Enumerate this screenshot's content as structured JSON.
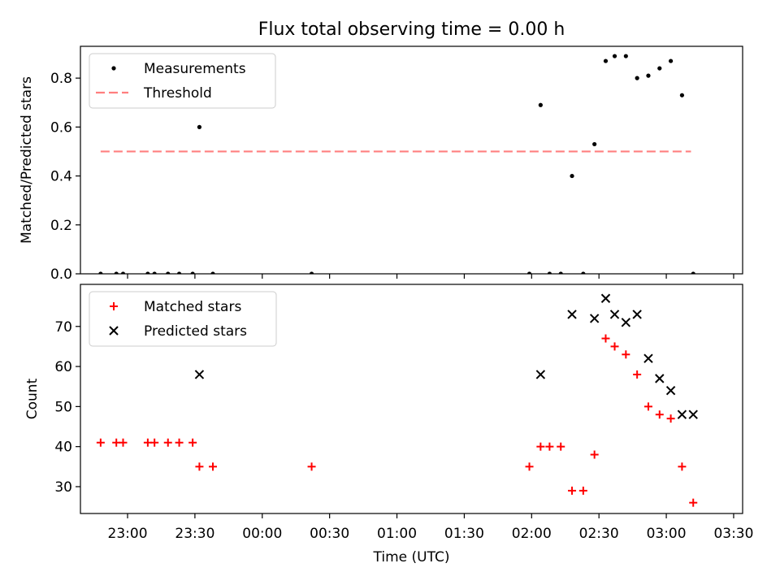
{
  "colors": {
    "background": "#ffffff",
    "axis": "#000000",
    "threshold": "#ff7f7f",
    "matched": "#ff0000",
    "predicted": "#000000",
    "measurement": "#000000"
  },
  "chart_data": [
    {
      "type": "scatter",
      "title": "Flux total observing time = 0.00 h",
      "xlabel": "",
      "ylabel": "Matched/Predicted stars",
      "x_unit": "minutes after 00:00 UTC",
      "xlim": [
        -81,
        214
      ],
      "ylim": [
        0,
        0.93
      ],
      "yticks": [
        0.0,
        0.2,
        0.4,
        0.6,
        0.8
      ],
      "ytick_labels": [
        "0.0",
        "0.2",
        "0.4",
        "0.6",
        "0.8"
      ],
      "legend": {
        "placement": "top-left",
        "entries": [
          {
            "label": "Measurements",
            "key": "measurements"
          },
          {
            "label": "Threshold",
            "key": "threshold"
          }
        ]
      },
      "series": [
        {
          "name": "Measurements",
          "key": "measurements",
          "marker": "dot",
          "x": [
            -72,
            -65,
            -62,
            -51,
            -48,
            -42,
            -37,
            -31,
            -28,
            -22,
            22,
            119,
            124,
            128,
            133,
            138,
            143,
            148,
            153,
            157,
            162,
            167,
            172,
            177,
            182,
            187,
            192
          ],
          "y": [
            0,
            0,
            0,
            0,
            0,
            0,
            0,
            0,
            0.6,
            0,
            0,
            0,
            0.69,
            0,
            0,
            0.4,
            0,
            0.53,
            0.87,
            0.89,
            0.89,
            0.8,
            0.81,
            0.84,
            0.87,
            0.73,
            0
          ]
        },
        {
          "name": "Threshold",
          "key": "threshold",
          "line_style": "dashed",
          "x": [
            -72,
            191
          ],
          "y": [
            0.5,
            0.5
          ]
        }
      ]
    },
    {
      "type": "scatter",
      "title": "",
      "xlabel": "Time (UTC)",
      "ylabel": "Count",
      "x_unit": "minutes after 00:00 UTC",
      "xlim": [
        -81,
        214
      ],
      "ylim": [
        23.3,
        80.5
      ],
      "yticks": [
        30,
        40,
        50,
        60,
        70
      ],
      "ytick_labels": [
        "30",
        "40",
        "50",
        "60",
        "70"
      ],
      "xticks": [
        -60,
        -30,
        0,
        30,
        60,
        90,
        120,
        150,
        180,
        210
      ],
      "xtick_labels": [
        "23:00",
        "23:30",
        "00:00",
        "00:30",
        "01:00",
        "01:30",
        "02:00",
        "02:30",
        "03:00",
        "03:30"
      ],
      "legend": {
        "placement": "top-left",
        "entries": [
          {
            "label": "Matched stars",
            "key": "matched"
          },
          {
            "label": "Predicted stars",
            "key": "predicted"
          }
        ]
      },
      "series": [
        {
          "name": "Matched stars",
          "key": "matched",
          "marker": "plus",
          "x": [
            -72,
            -65,
            -62,
            -51,
            -48,
            -42,
            -37,
            -31,
            -28,
            -22,
            22,
            119,
            124,
            128,
            133,
            138,
            143,
            148,
            153,
            157,
            162,
            167,
            172,
            177,
            182,
            187,
            192
          ],
          "y": [
            41,
            41,
            41,
            41,
            41,
            41,
            41,
            41,
            35,
            35,
            35,
            35,
            40,
            40,
            40,
            29,
            29,
            38,
            67,
            65,
            63,
            58,
            50,
            48,
            47,
            35,
            26
          ]
        },
        {
          "name": "Predicted stars",
          "key": "predicted",
          "marker": "x",
          "x": [
            -28,
            124,
            138,
            148,
            153,
            157,
            162,
            167,
            172,
            177,
            182,
            187,
            192
          ],
          "y": [
            58,
            58,
            73,
            72,
            77,
            73,
            71,
            73,
            62,
            57,
            54,
            48,
            48
          ]
        }
      ]
    }
  ]
}
